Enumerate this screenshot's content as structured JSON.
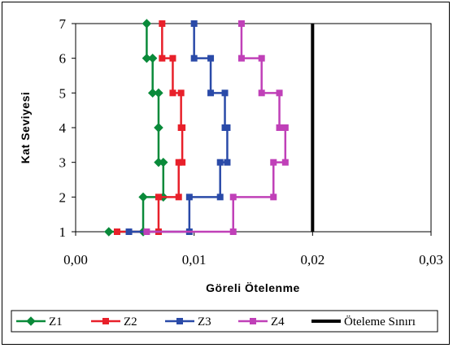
{
  "chart_data": {
    "type": "line",
    "title": "",
    "xlabel": "Göreli Ötelenme",
    "ylabel": "Kat Seviyesi",
    "xlim": [
      0,
      0.03
    ],
    "ylim": [
      1,
      7
    ],
    "xticks": [
      "0,00",
      "0,01",
      "0,02",
      "0,03"
    ],
    "yticks": [
      "1",
      "2",
      "3",
      "4",
      "5",
      "6",
      "7"
    ],
    "grid": false,
    "legend_position": "bottom",
    "series": [
      {
        "name": "Z1",
        "color": "#0a8a3a",
        "marker": "diamond",
        "points": [
          [
            0.0028,
            1
          ],
          [
            0.0057,
            1
          ],
          [
            0.0057,
            2
          ],
          [
            0.0074,
            2
          ],
          [
            0.0074,
            3
          ],
          [
            0.007,
            3
          ],
          [
            0.007,
            4
          ],
          [
            0.007,
            4
          ],
          [
            0.007,
            5
          ],
          [
            0.0065,
            5
          ],
          [
            0.0065,
            6
          ],
          [
            0.006,
            6
          ],
          [
            0.006,
            7
          ]
        ]
      },
      {
        "name": "Z2",
        "color": "#e8202a",
        "marker": "square",
        "points": [
          [
            0.0035,
            1
          ],
          [
            0.007,
            1
          ],
          [
            0.007,
            2
          ],
          [
            0.0087,
            2
          ],
          [
            0.0087,
            3
          ],
          [
            0.009,
            3
          ],
          [
            0.009,
            4
          ],
          [
            0.0089,
            4
          ],
          [
            0.0089,
            5
          ],
          [
            0.0082,
            5
          ],
          [
            0.0082,
            6
          ],
          [
            0.0073,
            6
          ],
          [
            0.0073,
            7
          ]
        ]
      },
      {
        "name": "Z3",
        "color": "#2a4aa8",
        "marker": "square",
        "points": [
          [
            0.0045,
            1
          ],
          [
            0.0096,
            1
          ],
          [
            0.0096,
            2
          ],
          [
            0.0122,
            2
          ],
          [
            0.0122,
            3
          ],
          [
            0.0128,
            3
          ],
          [
            0.0128,
            4
          ],
          [
            0.0126,
            4
          ],
          [
            0.0126,
            5
          ],
          [
            0.0114,
            5
          ],
          [
            0.0114,
            6
          ],
          [
            0.01,
            6
          ],
          [
            0.01,
            7
          ]
        ]
      },
      {
        "name": "Z4",
        "color": "#c040b8",
        "marker": "square",
        "points": [
          [
            0.006,
            1
          ],
          [
            0.0133,
            1
          ],
          [
            0.0133,
            2
          ],
          [
            0.0167,
            2
          ],
          [
            0.0167,
            3
          ],
          [
            0.0177,
            3
          ],
          [
            0.0177,
            4
          ],
          [
            0.0172,
            4
          ],
          [
            0.0172,
            5
          ],
          [
            0.0157,
            5
          ],
          [
            0.0157,
            6
          ],
          [
            0.014,
            6
          ],
          [
            0.014,
            7
          ]
        ]
      },
      {
        "name": "Öteleme Sınırı",
        "color": "#000000",
        "marker": "none",
        "points": [
          [
            0.02,
            1
          ],
          [
            0.02,
            7
          ]
        ]
      }
    ]
  }
}
